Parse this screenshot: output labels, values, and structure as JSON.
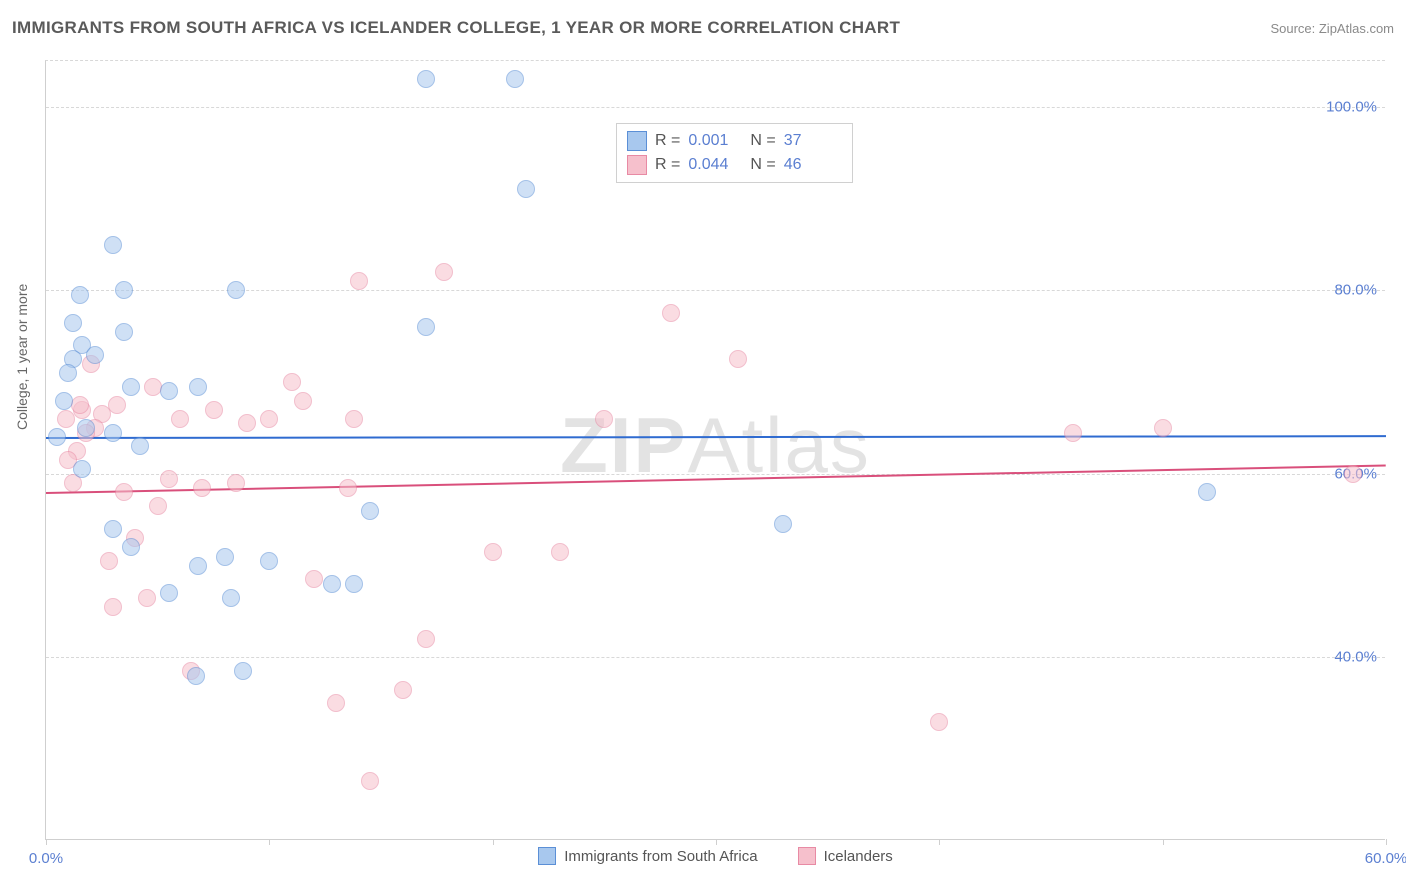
{
  "title": "IMMIGRANTS FROM SOUTH AFRICA VS ICELANDER COLLEGE, 1 YEAR OR MORE CORRELATION CHART",
  "source": "Source: ZipAtlas.com",
  "watermark_a": "ZIP",
  "watermark_b": "Atlas",
  "y_axis_label": "College, 1 year or more",
  "chart": {
    "type": "scatter",
    "xlim": [
      0,
      60
    ],
    "ylim": [
      20,
      105
    ],
    "x_ticks": [
      0,
      10,
      20,
      30,
      40,
      50,
      60
    ],
    "x_tick_labels": [
      "0.0%",
      "",
      "",
      "",
      "",
      "",
      "60.0%"
    ],
    "y_gridlines": [
      40,
      60,
      80,
      100
    ],
    "y_tick_labels": [
      "40.0%",
      "60.0%",
      "80.0%",
      "100.0%"
    ],
    "background_color": "#ffffff",
    "grid_color": "#d8d8d8",
    "axis_color": "#cfcfcf",
    "tick_label_color": "#5b7fd1",
    "point_radius": 9,
    "point_opacity": 0.55,
    "title_color": "#5a5a5a",
    "title_fontsize": 17,
    "series": [
      {
        "name": "Immigrants from South Africa",
        "color_fill": "#a8c8ee",
        "color_stroke": "#5b8fd6",
        "trend": {
          "y_at_x0": 64.0,
          "y_at_xmax": 64.2,
          "color": "#2f6bd0",
          "width": 2
        },
        "legend": {
          "r_label": "R =",
          "r_value": "0.001",
          "n_label": "N =",
          "n_value": "37"
        },
        "points": [
          [
            17.0,
            103.0
          ],
          [
            21.0,
            103.0
          ],
          [
            21.5,
            91.0
          ],
          [
            3.0,
            85.0
          ],
          [
            1.5,
            79.5
          ],
          [
            3.5,
            80.0
          ],
          [
            8.5,
            80.0
          ],
          [
            1.2,
            76.5
          ],
          [
            1.6,
            74.0
          ],
          [
            3.5,
            75.5
          ],
          [
            17.0,
            76.0
          ],
          [
            1.2,
            72.5
          ],
          [
            1.0,
            71.0
          ],
          [
            3.8,
            69.5
          ],
          [
            5.5,
            69.0
          ],
          [
            6.8,
            69.5
          ],
          [
            1.8,
            65.0
          ],
          [
            3.0,
            64.5
          ],
          [
            4.2,
            63.0
          ],
          [
            1.6,
            60.5
          ],
          [
            3.0,
            54.0
          ],
          [
            3.8,
            52.0
          ],
          [
            6.8,
            50.0
          ],
          [
            8.0,
            51.0
          ],
          [
            10.0,
            50.5
          ],
          [
            14.5,
            56.0
          ],
          [
            33.0,
            54.5
          ],
          [
            12.8,
            48.0
          ],
          [
            13.8,
            48.0
          ],
          [
            8.3,
            46.5
          ],
          [
            5.5,
            47.0
          ],
          [
            6.7,
            38.0
          ],
          [
            8.8,
            38.5
          ],
          [
            52.0,
            58.0
          ],
          [
            0.5,
            64.0
          ],
          [
            0.8,
            68.0
          ],
          [
            2.2,
            73.0
          ]
        ]
      },
      {
        "name": "Icelanders",
        "color_fill": "#f6c0cc",
        "color_stroke": "#e88aa4",
        "trend": {
          "y_at_x0": 58.0,
          "y_at_xmax": 61.0,
          "color": "#d94f7b",
          "width": 2
        },
        "legend": {
          "r_label": "R =",
          "r_value": "0.044",
          "n_label": "N =",
          "n_value": "46"
        },
        "points": [
          [
            14.0,
            81.0
          ],
          [
            17.8,
            82.0
          ],
          [
            28.0,
            77.5
          ],
          [
            46.0,
            64.5
          ],
          [
            50.0,
            65.0
          ],
          [
            58.5,
            60.0
          ],
          [
            31.0,
            72.5
          ],
          [
            25.0,
            66.0
          ],
          [
            20.0,
            51.5
          ],
          [
            17.0,
            42.0
          ],
          [
            16.0,
            36.5
          ],
          [
            14.5,
            26.5
          ],
          [
            13.0,
            35.0
          ],
          [
            13.5,
            58.5
          ],
          [
            12.0,
            48.5
          ],
          [
            11.0,
            70.0
          ],
          [
            11.5,
            68.0
          ],
          [
            10.0,
            66.0
          ],
          [
            9.0,
            65.5
          ],
          [
            7.5,
            67.0
          ],
          [
            6.0,
            66.0
          ],
          [
            6.5,
            38.5
          ],
          [
            5.0,
            56.5
          ],
          [
            4.5,
            46.5
          ],
          [
            4.0,
            53.0
          ],
          [
            3.5,
            58.0
          ],
          [
            3.0,
            45.5
          ],
          [
            2.8,
            50.5
          ],
          [
            2.5,
            66.5
          ],
          [
            2.2,
            65.0
          ],
          [
            2.0,
            72.0
          ],
          [
            1.8,
            64.5
          ],
          [
            1.6,
            67.0
          ],
          [
            1.4,
            62.5
          ],
          [
            1.2,
            59.0
          ],
          [
            1.0,
            61.5
          ],
          [
            4.8,
            69.5
          ],
          [
            5.5,
            59.5
          ],
          [
            7.0,
            58.5
          ],
          [
            8.5,
            59.0
          ],
          [
            23.0,
            51.5
          ],
          [
            40.0,
            33.0
          ],
          [
            13.8,
            66.0
          ],
          [
            1.5,
            67.5
          ],
          [
            0.9,
            66.0
          ],
          [
            3.2,
            67.5
          ]
        ]
      }
    ],
    "legend_bottom": [
      {
        "label": "Immigrants from South Africa",
        "fill": "#a8c8ee",
        "stroke": "#5b8fd6"
      },
      {
        "label": "Icelanders",
        "fill": "#f6c0cc",
        "stroke": "#e88aa4"
      }
    ]
  }
}
